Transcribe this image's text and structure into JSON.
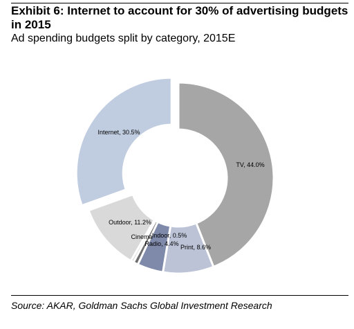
{
  "title": "Exhibit 6: Internet to account for 30% of advertising budgets in 2015",
  "subtitle": "Ad spending budgets split by category, 2015E",
  "source": "Source: AKAR, Goldman Sachs Global Investment Research",
  "chart_data": {
    "type": "pie",
    "title": "Exhibit 6: Internet to account for 30% of advertising budgets in 2015",
    "subtitle": "Ad spending budgets split by category, 2015E",
    "donut": true,
    "slices": [
      {
        "label": "TV, 44.0%",
        "category": "TV",
        "value": 44.0,
        "color": "#a6a6a6"
      },
      {
        "label": "Print, 8.6%",
        "category": "Print",
        "value": 8.6,
        "color": "#bcc3d6"
      },
      {
        "label": "Radio, 4.4%",
        "category": "Radio",
        "value": 4.4,
        "color": "#7f8aaa"
      },
      {
        "label": "Cinema",
        "category": "Cinema",
        "value": 0.8,
        "color": "#6e6e6e"
      },
      {
        "label": "Indoor, 0.5%",
        "category": "Indoor",
        "value": 0.5,
        "color": "#d9d9d9"
      },
      {
        "label": "Outdoor, 11.2%",
        "category": "Outdoor",
        "value": 11.2,
        "color": "#d9d9d9"
      },
      {
        "label": "Internet, 30.5%",
        "category": "Internet",
        "value": 30.5,
        "color": "#c0cce0"
      }
    ]
  }
}
